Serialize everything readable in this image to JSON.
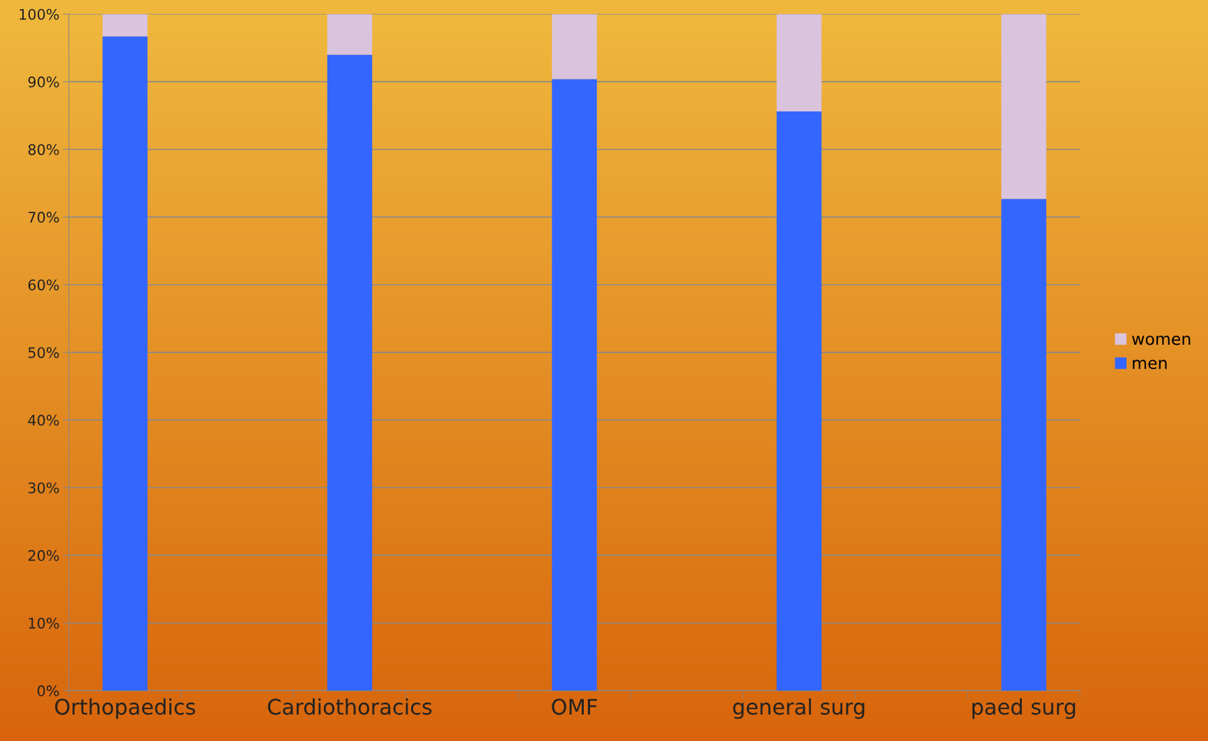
{
  "chart_data": {
    "type": "bar",
    "stacked": true,
    "categories": [
      "Orthopaedics",
      "Cardiothoracics",
      "OMF",
      "general surg",
      "paed surg"
    ],
    "series": [
      {
        "name": "men",
        "color": "#3366ff",
        "values": [
          96.7,
          94.0,
          90.4,
          85.6,
          72.7
        ]
      },
      {
        "name": "women",
        "color": "#d9c3dd",
        "values": [
          3.3,
          6.0,
          9.6,
          14.4,
          27.3
        ]
      }
    ],
    "ylim": [
      0,
      100
    ],
    "yticks": [
      {
        "value": 0,
        "label": "0%"
      },
      {
        "value": 10,
        "label": "10%"
      },
      {
        "value": 20,
        "label": "20%"
      },
      {
        "value": 30,
        "label": "30%"
      },
      {
        "value": 40,
        "label": "40%"
      },
      {
        "value": 50,
        "label": "50%"
      },
      {
        "value": 60,
        "label": "60%"
      },
      {
        "value": 70,
        "label": "70%"
      },
      {
        "value": 80,
        "label": "80%"
      },
      {
        "value": 90,
        "label": "90%"
      },
      {
        "value": 100,
        "label": "100%"
      }
    ],
    "grid": "y",
    "legend": "right"
  }
}
